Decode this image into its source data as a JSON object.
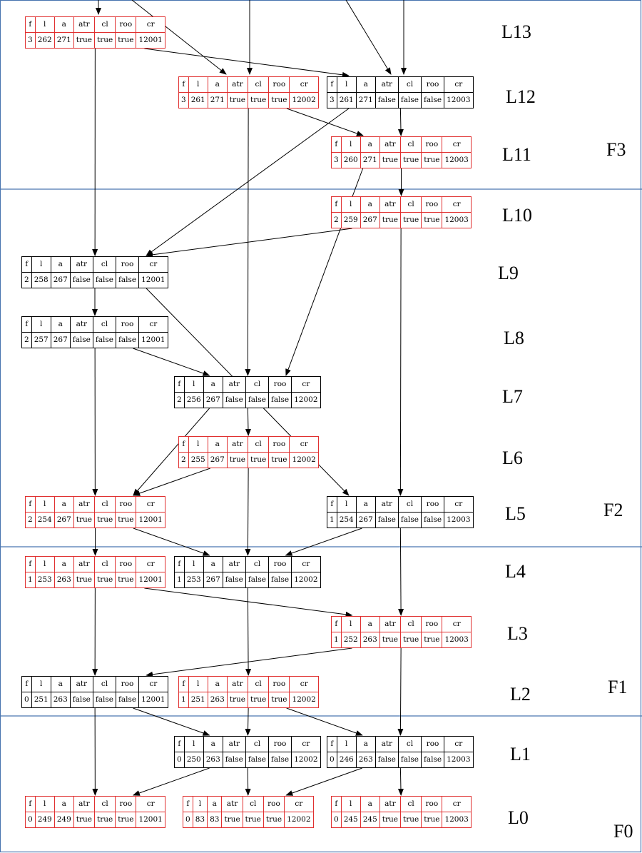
{
  "colors": {
    "red_border": "#e03030",
    "black_border": "#000000",
    "divider": "#4a76b0",
    "edge": "#000000"
  },
  "headers": [
    "f",
    "l",
    "a",
    "atr",
    "cl",
    "roo",
    "cr"
  ],
  "nodes": [
    {
      "id": "n13a",
      "values": [
        "3",
        "262",
        "271",
        "true",
        "true",
        "true",
        "12001"
      ],
      "red": true
    },
    {
      "id": "n12a",
      "values": [
        "3",
        "261",
        "271",
        "true",
        "true",
        "true",
        "12002"
      ],
      "red": true
    },
    {
      "id": "n12b",
      "values": [
        "3",
        "261",
        "271",
        "false",
        "false",
        "false",
        "12003"
      ],
      "red": false
    },
    {
      "id": "n11",
      "values": [
        "3",
        "260",
        "271",
        "true",
        "true",
        "true",
        "12003"
      ],
      "red": true
    },
    {
      "id": "n10",
      "values": [
        "2",
        "259",
        "267",
        "true",
        "true",
        "true",
        "12003"
      ],
      "red": true
    },
    {
      "id": "n9",
      "values": [
        "2",
        "258",
        "267",
        "false",
        "false",
        "false",
        "12001"
      ],
      "red": false
    },
    {
      "id": "n8",
      "values": [
        "2",
        "257",
        "267",
        "false",
        "false",
        "false",
        "12001"
      ],
      "red": false
    },
    {
      "id": "n7",
      "values": [
        "2",
        "256",
        "267",
        "false",
        "false",
        "false",
        "12002"
      ],
      "red": false
    },
    {
      "id": "n6",
      "values": [
        "2",
        "255",
        "267",
        "true",
        "true",
        "true",
        "12002"
      ],
      "red": true
    },
    {
      "id": "n5a",
      "values": [
        "2",
        "254",
        "267",
        "true",
        "true",
        "true",
        "12001"
      ],
      "red": true
    },
    {
      "id": "n5b",
      "values": [
        "1",
        "254",
        "267",
        "false",
        "false",
        "false",
        "12003"
      ],
      "red": false
    },
    {
      "id": "n4a",
      "values": [
        "1",
        "253",
        "263",
        "true",
        "true",
        "true",
        "12001"
      ],
      "red": true
    },
    {
      "id": "n4b",
      "values": [
        "1",
        "253",
        "267",
        "false",
        "false",
        "false",
        "12002"
      ],
      "red": false
    },
    {
      "id": "n3",
      "values": [
        "1",
        "252",
        "263",
        "true",
        "true",
        "true",
        "12003"
      ],
      "red": true
    },
    {
      "id": "n2a",
      "values": [
        "0",
        "251",
        "263",
        "false",
        "false",
        "false",
        "12001"
      ],
      "red": false
    },
    {
      "id": "n2b",
      "values": [
        "1",
        "251",
        "263",
        "true",
        "true",
        "true",
        "12002"
      ],
      "red": true
    },
    {
      "id": "n1a",
      "values": [
        "0",
        "250",
        "263",
        "false",
        "false",
        "false",
        "12002"
      ],
      "red": false
    },
    {
      "id": "n1b",
      "values": [
        "0",
        "246",
        "263",
        "false",
        "false",
        "false",
        "12003"
      ],
      "red": false
    },
    {
      "id": "n0a",
      "values": [
        "0",
        "249",
        "249",
        "true",
        "true",
        "true",
        "12001"
      ],
      "red": true
    },
    {
      "id": "n0b",
      "values": [
        "0",
        "83",
        "83",
        "true",
        "true",
        "true",
        "12002"
      ],
      "red": true
    },
    {
      "id": "n0c",
      "values": [
        "0",
        "245",
        "245",
        "true",
        "true",
        "true",
        "12003"
      ],
      "red": true
    }
  ],
  "edges": [
    [
      "n13a",
      "n12b"
    ],
    [
      "n13a",
      "n9"
    ],
    [
      "n12a",
      "n11"
    ],
    [
      "n12a",
      "n7"
    ],
    [
      "n12b",
      "n11"
    ],
    [
      "n12b",
      "n9"
    ],
    [
      "n11",
      "n10"
    ],
    [
      "n11",
      "n7"
    ],
    [
      "n10",
      "n9"
    ],
    [
      "n10",
      "n5b"
    ],
    [
      "n9",
      "n8"
    ],
    [
      "n9",
      "n5b"
    ],
    [
      "n8",
      "n7"
    ],
    [
      "n8",
      "n5a"
    ],
    [
      "n7",
      "n6"
    ],
    [
      "n7",
      "n5a"
    ],
    [
      "n6",
      "n5a"
    ],
    [
      "n6",
      "n4b"
    ],
    [
      "n5a",
      "n4a"
    ],
    [
      "n5a",
      "n4b"
    ],
    [
      "n5b",
      "n4b"
    ],
    [
      "n5b",
      "n3"
    ],
    [
      "n4a",
      "n3"
    ],
    [
      "n4a",
      "n2a"
    ],
    [
      "n4b",
      "n2b"
    ],
    [
      "n3",
      "n2a"
    ],
    [
      "n3",
      "n1b"
    ],
    [
      "n2a",
      "n1a"
    ],
    [
      "n2a",
      "n0a"
    ],
    [
      "n2b",
      "n1a"
    ],
    [
      "n2b",
      "n1b"
    ],
    [
      "n1a",
      "n0a"
    ],
    [
      "n1a",
      "n0b"
    ],
    [
      "n1b",
      "n0b"
    ],
    [
      "n1b",
      "n0c"
    ]
  ],
  "entry_edges": [
    "n13a",
    "n12a",
    "n12b",
    "n12b"
  ],
  "levels": [
    "L13",
    "L12",
    "L11",
    "L10",
    "L9",
    "L8",
    "L7",
    "L6",
    "L5",
    "L4",
    "L3",
    "L2",
    "L1",
    "L0"
  ],
  "files": [
    "F3",
    "F2",
    "F1",
    "F0"
  ]
}
